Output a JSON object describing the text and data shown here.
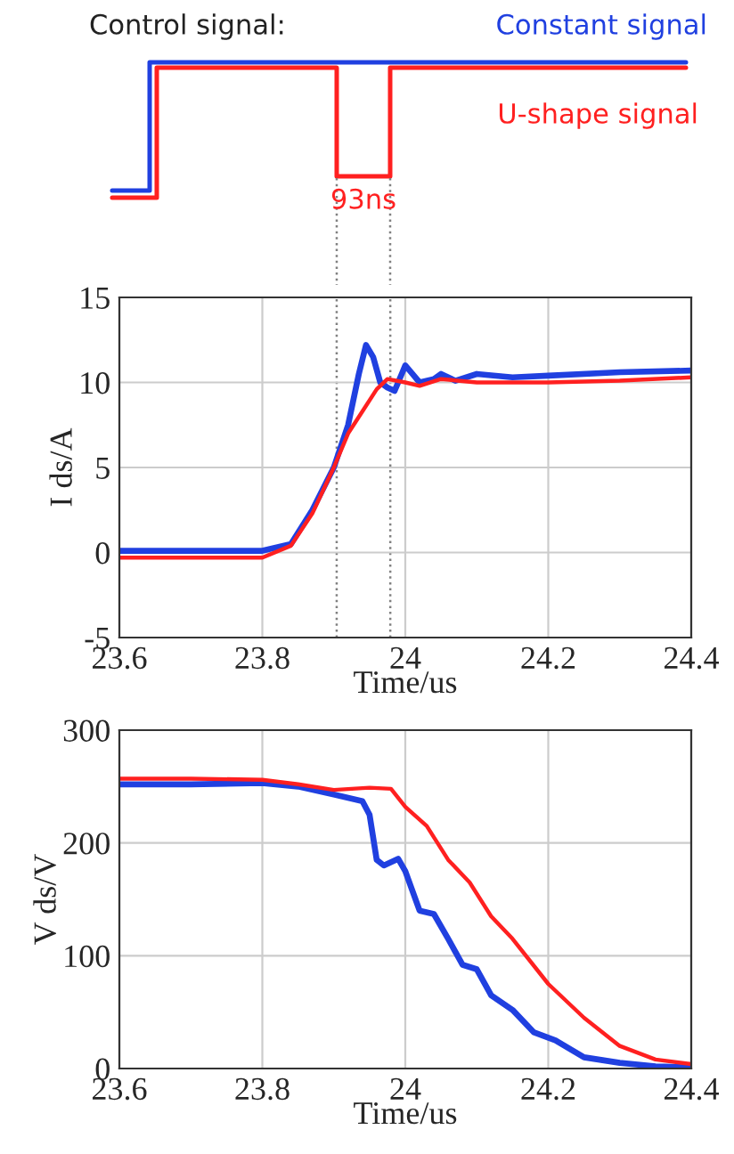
{
  "chart_data": [
    {
      "type": "other",
      "annotations": [
        "Control signal:",
        "Constant signal",
        "U-shape signal",
        "93ns"
      ]
    },
    {
      "type": "line",
      "ylabel": "I ds/A",
      "xlabel": "Time/us",
      "grid": true,
      "xlim": [
        23.6,
        24.4
      ],
      "xticks": [
        23.6,
        23.8,
        24,
        24.2,
        24.4
      ],
      "ylim": [
        -5,
        15
      ],
      "yticks": [
        -5,
        0,
        5,
        10,
        15
      ],
      "ref_lines": [
        {
          "axis": "x",
          "value": 23.904,
          "color": "#808080",
          "line_style": "dotted"
        },
        {
          "axis": "x",
          "value": 23.979,
          "color": "#808080",
          "line_style": "dotted"
        }
      ],
      "series": [
        {
          "color": "#2040e0",
          "x": [
            23.6,
            23.7,
            23.8,
            23.84,
            23.87,
            23.9,
            23.92,
            23.935,
            23.945,
            23.955,
            23.965,
            23.975,
            23.985,
            23.995,
            24.0,
            24.01,
            24.02,
            24.04,
            24.05,
            24.07,
            24.1,
            24.15,
            24.2,
            24.3,
            24.4
          ],
          "values": [
            0.1,
            0.1,
            0.1,
            0.5,
            2.5,
            5,
            7.5,
            10.5,
            12.2,
            11.5,
            10,
            9.7,
            9.5,
            10.5,
            11,
            10.5,
            10,
            10.2,
            10.5,
            10.1,
            10.5,
            10.3,
            10.4,
            10.6,
            10.7
          ]
        },
        {
          "color": "#ff2020",
          "x": [
            23.6,
            23.7,
            23.8,
            23.84,
            23.87,
            23.9,
            23.92,
            23.94,
            23.96,
            23.975,
            24.0,
            24.02,
            24.05,
            24.1,
            24.2,
            24.3,
            24.4
          ],
          "values": [
            -0.3,
            -0.3,
            -0.3,
            0.4,
            2.3,
            5,
            7,
            8.3,
            9.6,
            10.2,
            10,
            9.8,
            10.2,
            10,
            10,
            10.1,
            10.3
          ]
        }
      ]
    },
    {
      "type": "line",
      "ylabel": "V ds/V",
      "xlabel": "Time/us",
      "grid": true,
      "xlim": [
        23.6,
        24.4
      ],
      "xticks": [
        23.6,
        23.8,
        24,
        24.2,
        24.4
      ],
      "ylim": [
        0,
        300
      ],
      "yticks": [
        0,
        100,
        200,
        300
      ],
      "series": [
        {
          "color": "#2040e0",
          "x": [
            23.6,
            23.7,
            23.8,
            23.85,
            23.9,
            23.94,
            23.95,
            23.96,
            23.97,
            23.99,
            24.0,
            24.02,
            24.04,
            24.06,
            24.08,
            24.1,
            24.12,
            24.15,
            24.18,
            24.21,
            24.25,
            24.3,
            24.35,
            24.4
          ],
          "values": [
            252,
            252,
            253,
            250,
            243,
            237,
            225,
            185,
            180,
            186,
            175,
            140,
            137,
            115,
            92,
            88,
            65,
            52,
            32,
            25,
            10,
            5,
            2,
            1
          ]
        },
        {
          "color": "#ff2020",
          "x": [
            23.6,
            23.7,
            23.8,
            23.85,
            23.9,
            23.95,
            23.98,
            24.0,
            24.03,
            24.06,
            24.09,
            24.12,
            24.15,
            24.2,
            24.25,
            24.3,
            24.35,
            24.4
          ],
          "values": [
            257,
            257,
            256,
            252,
            247,
            249,
            248,
            232,
            215,
            185,
            165,
            135,
            115,
            75,
            45,
            20,
            8,
            4
          ]
        }
      ]
    }
  ]
}
